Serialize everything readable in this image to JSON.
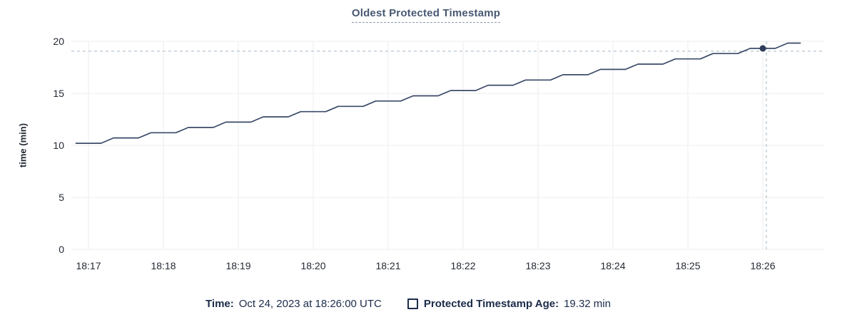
{
  "title": "Oldest Protected Timestamp",
  "y_axis_label": "time (min)",
  "footer": {
    "time_label": "Time:",
    "time_value": "Oct 24, 2023 at 18:26:00 UTC",
    "series_label": "Protected Timestamp Age:",
    "series_value": "19.32 min"
  },
  "colors": {
    "title": "#475872",
    "title_underline": "#8b9ab3",
    "line": "#3b4a68",
    "point": "#2f3d5a",
    "axis_text": "#242a35",
    "grid": "#ececec",
    "crosshair": "#a3b7c6",
    "legend_text": "#1b2b4a"
  },
  "chart_data": {
    "type": "line",
    "title": "Oldest Protected Timestamp",
    "xlabel": "",
    "ylabel": "time (min)",
    "ylim": [
      0,
      20
    ],
    "y_ticks": [
      0,
      5,
      10,
      15,
      20
    ],
    "x_ticks": [
      "18:17",
      "18:18",
      "18:19",
      "18:20",
      "18:21",
      "18:22",
      "18:23",
      "18:24",
      "18:25",
      "18:26"
    ],
    "grid": true,
    "legend_position": "bottom",
    "sample_interval_seconds": 10,
    "series": [
      {
        "name": "Protected Timestamp Age",
        "unit": "min",
        "points": [
          [
            "18:16:50",
            10.2
          ],
          [
            "18:17:00",
            10.2
          ],
          [
            "18:17:10",
            10.2
          ],
          [
            "18:17:20",
            10.71
          ],
          [
            "18:17:30",
            10.71
          ],
          [
            "18:17:40",
            10.71
          ],
          [
            "18:17:50",
            11.21
          ],
          [
            "18:18:00",
            11.21
          ],
          [
            "18:18:10",
            11.21
          ],
          [
            "18:18:20",
            11.72
          ],
          [
            "18:18:30",
            11.72
          ],
          [
            "18:18:40",
            11.72
          ],
          [
            "18:18:50",
            12.23
          ],
          [
            "18:19:00",
            12.23
          ],
          [
            "18:19:10",
            12.23
          ],
          [
            "18:19:20",
            12.74
          ],
          [
            "18:19:30",
            12.74
          ],
          [
            "18:19:40",
            12.74
          ],
          [
            "18:19:50",
            13.24
          ],
          [
            "18:20:00",
            13.24
          ],
          [
            "18:20:10",
            13.24
          ],
          [
            "18:20:20",
            13.75
          ],
          [
            "18:20:30",
            13.75
          ],
          [
            "18:20:40",
            13.75
          ],
          [
            "18:20:50",
            14.26
          ],
          [
            "18:21:00",
            14.26
          ],
          [
            "18:21:10",
            14.26
          ],
          [
            "18:21:20",
            14.76
          ],
          [
            "18:21:30",
            14.76
          ],
          [
            "18:21:40",
            14.76
          ],
          [
            "18:21:50",
            15.27
          ],
          [
            "18:22:00",
            15.27
          ],
          [
            "18:22:10",
            15.27
          ],
          [
            "18:22:20",
            15.78
          ],
          [
            "18:22:30",
            15.78
          ],
          [
            "18:22:40",
            15.78
          ],
          [
            "18:22:50",
            16.28
          ],
          [
            "18:23:00",
            16.28
          ],
          [
            "18:23:10",
            16.28
          ],
          [
            "18:23:20",
            16.79
          ],
          [
            "18:23:30",
            16.79
          ],
          [
            "18:23:40",
            16.79
          ],
          [
            "18:23:50",
            17.3
          ],
          [
            "18:24:00",
            17.3
          ],
          [
            "18:24:10",
            17.3
          ],
          [
            "18:24:20",
            17.81
          ],
          [
            "18:24:30",
            17.81
          ],
          [
            "18:24:40",
            17.81
          ],
          [
            "18:24:50",
            18.31
          ],
          [
            "18:25:00",
            18.31
          ],
          [
            "18:25:10",
            18.31
          ],
          [
            "18:25:20",
            18.82
          ],
          [
            "18:25:30",
            18.82
          ],
          [
            "18:25:40",
            18.82
          ],
          [
            "18:25:50",
            19.32
          ],
          [
            "18:26:00",
            19.32
          ],
          [
            "18:26:10",
            19.32
          ],
          [
            "18:26:20",
            19.83
          ],
          [
            "18:26:30",
            19.83
          ]
        ]
      }
    ],
    "hover_point": {
      "time": "18:26:00",
      "value": 19.32,
      "date_display": "Oct 24, 2023 at 18:26:00 UTC"
    }
  }
}
